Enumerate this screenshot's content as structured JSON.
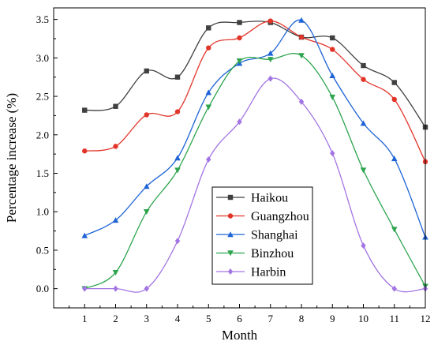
{
  "chart_data": {
    "type": "line",
    "title": "",
    "xlabel": "Month",
    "ylabel": "Percentage increase (%)",
    "x": [
      1,
      2,
      3,
      4,
      5,
      6,
      7,
      8,
      9,
      10,
      11,
      12
    ],
    "xlim": [
      0,
      12
    ],
    "ylim": [
      -0.25,
      3.65
    ],
    "x_ticks": [
      "1",
      "2",
      "3",
      "4",
      "5",
      "6",
      "7",
      "8",
      "9",
      "10",
      "11",
      "12"
    ],
    "y_ticks": [
      "0.0",
      "0.5",
      "1.0",
      "1.5",
      "2.0",
      "2.5",
      "3.0",
      "3.5"
    ],
    "grid": false,
    "smooth": true,
    "legend_position": "bottom-center",
    "series": [
      {
        "name": "Haikou",
        "color": "#404040",
        "marker": "square",
        "values": [
          2.32,
          2.37,
          2.83,
          2.75,
          3.39,
          3.46,
          3.46,
          3.27,
          3.26,
          2.9,
          2.68,
          2.1
        ]
      },
      {
        "name": "Guangzhou",
        "color": "#e2352a",
        "marker": "circle",
        "values": [
          1.79,
          1.85,
          2.26,
          2.3,
          3.13,
          3.26,
          3.48,
          3.27,
          3.11,
          2.72,
          2.46,
          1.65
        ]
      },
      {
        "name": "Shanghai",
        "color": "#1e64d6",
        "marker": "triangle-up",
        "values": [
          0.69,
          0.89,
          1.33,
          1.7,
          2.55,
          2.93,
          3.06,
          3.49,
          2.77,
          2.15,
          1.69,
          0.67
        ]
      },
      {
        "name": "Binzhou",
        "color": "#2da44e",
        "marker": "triangle-down",
        "values": [
          0.0,
          0.21,
          1.0,
          1.54,
          2.36,
          2.96,
          2.98,
          3.03,
          2.49,
          1.54,
          0.77,
          0.03
        ]
      },
      {
        "name": "Harbin",
        "color": "#a374e3",
        "marker": "diamond",
        "values": [
          0.0,
          0.0,
          0.0,
          0.62,
          1.68,
          2.17,
          2.73,
          2.43,
          1.76,
          0.56,
          0.0,
          0.0
        ]
      }
    ]
  }
}
